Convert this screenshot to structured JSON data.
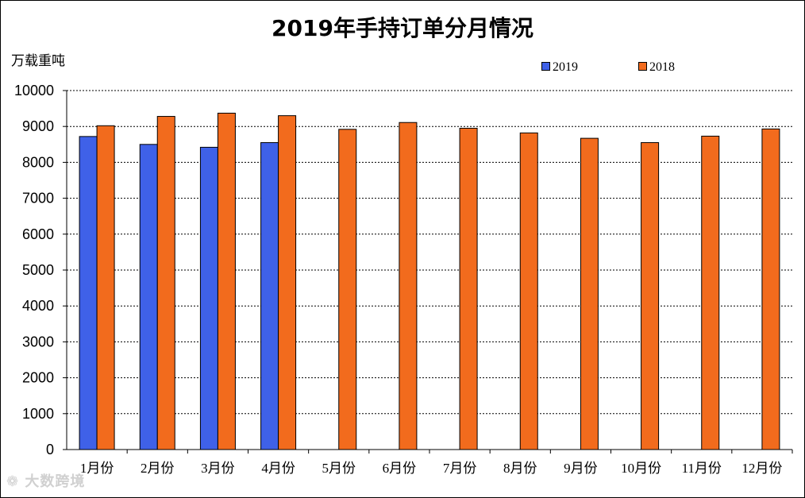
{
  "chart_data": {
    "type": "bar",
    "title": "2019年手持订单分月情况",
    "ylabel": "万载重吨",
    "ylim": [
      0,
      10000
    ],
    "yticks": [
      0,
      1000,
      2000,
      3000,
      4000,
      5000,
      6000,
      7000,
      8000,
      9000,
      10000
    ],
    "grid": true,
    "legend_position": "top-right",
    "categories": [
      "1月份",
      "2月份",
      "3月份",
      "4月份",
      "5月份",
      "6月份",
      "7月份",
      "8月份",
      "9月份",
      "10月份",
      "11月份",
      "12月份"
    ],
    "series": [
      {
        "name": "2019",
        "color": "#3f61e8",
        "values": [
          8720,
          8500,
          8420,
          8550,
          null,
          null,
          null,
          null,
          null,
          null,
          null,
          null
        ]
      },
      {
        "name": "2018",
        "color": "#f26b1d",
        "values": [
          9020,
          9280,
          9370,
          9300,
          8920,
          9110,
          8950,
          8820,
          8670,
          8550,
          8730,
          8930
        ]
      }
    ]
  },
  "watermark": "大数跨境"
}
